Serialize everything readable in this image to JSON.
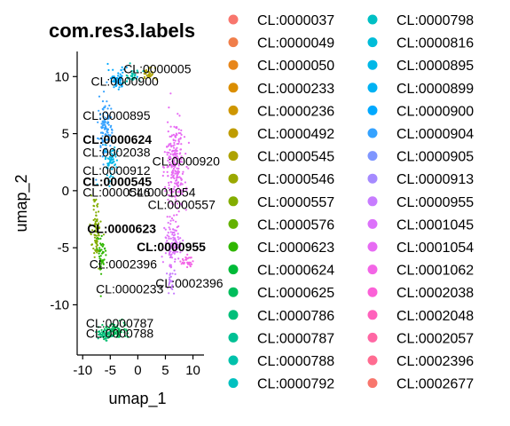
{
  "chart_data": {
    "type": "scatter",
    "title": "com.res3.labels",
    "xlabel": "umap_1",
    "ylabel": "umap_2",
    "xlim": [
      -11,
      12
    ],
    "ylim": [
      -14.4,
      12.2
    ],
    "xticks": [
      -10,
      -5,
      0,
      5,
      10
    ],
    "yticks": [
      -10,
      -5,
      0,
      5,
      10
    ],
    "grid": false,
    "legend_placement": "right",
    "legend": [
      {
        "label": "CL:0000037",
        "color": "#F8766D"
      },
      {
        "label": "CL:0000049",
        "color": "#F07E4A"
      },
      {
        "label": "CL:0000050",
        "color": "#E7861B"
      },
      {
        "label": "CL:0000233",
        "color": "#DB8E00"
      },
      {
        "label": "CL:0000236",
        "color": "#CE9600"
      },
      {
        "label": "CL:0000492",
        "color": "#BF9C00"
      },
      {
        "label": "CL:0000545",
        "color": "#AEA200"
      },
      {
        "label": "CL:0000546",
        "color": "#9AA800"
      },
      {
        "label": "CL:0000557",
        "color": "#83AD00"
      },
      {
        "label": "CL:0000576",
        "color": "#64B200"
      },
      {
        "label": "CL:0000623",
        "color": "#2FB600"
      },
      {
        "label": "CL:0000624",
        "color": "#00BA38"
      },
      {
        "label": "CL:0000625",
        "color": "#00BD5C"
      },
      {
        "label": "CL:0000786",
        "color": "#00BF7A"
      },
      {
        "label": "CL:0000787",
        "color": "#00C094"
      },
      {
        "label": "CL:0000788",
        "color": "#00C1AB"
      },
      {
        "label": "CL:0000792",
        "color": "#00C0BF"
      },
      {
        "label": "CL:0000798",
        "color": "#00BFC4"
      },
      {
        "label": "CL:0000816",
        "color": "#00BCD8"
      },
      {
        "label": "CL:0000895",
        "color": "#00B8E7"
      },
      {
        "label": "CL:0000899",
        "color": "#00B2F3"
      },
      {
        "label": "CL:0000900",
        "color": "#00A9FF"
      },
      {
        "label": "CL:0000904",
        "color": "#35A2FF"
      },
      {
        "label": "CL:0000905",
        "color": "#7F96FF"
      },
      {
        "label": "CL:0000913",
        "color": "#A58AFF"
      },
      {
        "label": "CL:0000955",
        "color": "#C77CFF"
      },
      {
        "label": "CL:0001045",
        "color": "#DC71FA"
      },
      {
        "label": "CL:0001054",
        "color": "#E76BF3"
      },
      {
        "label": "CL:0001062",
        "color": "#F365E6"
      },
      {
        "label": "CL:0002038",
        "color": "#FB61D7"
      },
      {
        "label": "CL:0002048",
        "color": "#FF62BC"
      },
      {
        "label": "CL:0002057",
        "color": "#FF67A4"
      },
      {
        "label": "CL:0002396",
        "color": "#FF6C91"
      },
      {
        "label": "CL:0002677",
        "color": "#F8766D"
      }
    ],
    "clusters": [
      {
        "color": "#00A9FF",
        "cx": -3.6,
        "cy": 9.8,
        "rx": 1.8,
        "ry": 0.9,
        "n": 60
      },
      {
        "color": "#00C1AB",
        "cx": -1.0,
        "cy": 10.0,
        "rx": 1.6,
        "ry": 0.7,
        "n": 30
      },
      {
        "color": "#AEA200",
        "cx": 1.8,
        "cy": 10.2,
        "rx": 1.4,
        "ry": 0.6,
        "n": 30
      },
      {
        "color": "#35A2FF",
        "cx": -5.8,
        "cy": 5.5,
        "rx": 1.3,
        "ry": 2.6,
        "n": 110
      },
      {
        "color": "#00B8E7",
        "cx": -4.8,
        "cy": 2.5,
        "rx": 1.2,
        "ry": 1.6,
        "n": 60
      },
      {
        "color": "#83AD00",
        "cx": -7.6,
        "cy": -3.6,
        "rx": 0.9,
        "ry": 2.8,
        "n": 80
      },
      {
        "color": "#2FB600",
        "cx": -6.6,
        "cy": -5.6,
        "rx": 0.9,
        "ry": 1.8,
        "n": 50
      },
      {
        "color": "#E76BF3",
        "cx": 6.8,
        "cy": 2.0,
        "rx": 1.8,
        "ry": 4.6,
        "n": 240
      },
      {
        "color": "#DC71FA",
        "cx": 6.2,
        "cy": -4.8,
        "rx": 1.5,
        "ry": 1.8,
        "n": 90
      },
      {
        "color": "#F365E6",
        "cx": 8.8,
        "cy": -6.2,
        "rx": 1.1,
        "ry": 0.6,
        "n": 30
      },
      {
        "color": "#C77CFF",
        "cx": 6.0,
        "cy": -7.8,
        "rx": 0.7,
        "ry": 0.9,
        "n": 25
      },
      {
        "color": "#00BD5C",
        "cx": -4.0,
        "cy": -12.3,
        "rx": 2.8,
        "ry": 0.7,
        "n": 80
      },
      {
        "color": "#00BF7A",
        "cx": -6.2,
        "cy": -12.6,
        "rx": 1.5,
        "ry": 0.5,
        "n": 40
      }
    ],
    "point_labels": [
      {
        "text": "CL:0000005",
        "x": -2.6,
        "y": 10.3,
        "bold": false
      },
      {
        "text": "CL:0000900",
        "x": -8.5,
        "y": 9.2,
        "bold": false
      },
      {
        "text": "CL:0000895",
        "x": -10.0,
        "y": 6.2,
        "bold": false
      },
      {
        "text": "CL:0000624",
        "x": -10.0,
        "y": 4.1,
        "bold": true
      },
      {
        "text": "CL:0002038",
        "x": -10.0,
        "y": 3.0,
        "bold": false
      },
      {
        "text": "CL:0000920",
        "x": 2.6,
        "y": 2.2,
        "bold": false
      },
      {
        "text": "CL:0000912",
        "x": -10.0,
        "y": 1.4,
        "bold": false
      },
      {
        "text": "CL:0000545",
        "x": -10.0,
        "y": 0.4,
        "bold": true
      },
      {
        "text": "CL:0000546",
        "x": -10.0,
        "y": -0.5,
        "bold": false
      },
      {
        "text": "CL:0001054",
        "x": -1.8,
        "y": -0.5,
        "bold": false
      },
      {
        "text": "CL:0000557",
        "x": 1.8,
        "y": -1.6,
        "bold": false
      },
      {
        "text": "CL:0000623",
        "x": -9.2,
        "y": -3.7,
        "bold": true
      },
      {
        "text": "CL:0000955",
        "x": -0.2,
        "y": -5.3,
        "bold": true
      },
      {
        "text": "CL:0002396",
        "x": -8.8,
        "y": -6.8,
        "bold": false
      },
      {
        "text": "CL:0002396",
        "x": 3.2,
        "y": -8.5,
        "bold": false
      },
      {
        "text": "CL:0000233",
        "x": -7.6,
        "y": -9.0,
        "bold": false
      },
      {
        "text": "CL:0000787",
        "x": -9.4,
        "y": -12.0,
        "bold": false
      },
      {
        "text": "CL:0000788",
        "x": -9.4,
        "y": -12.9,
        "bold": false
      }
    ]
  }
}
